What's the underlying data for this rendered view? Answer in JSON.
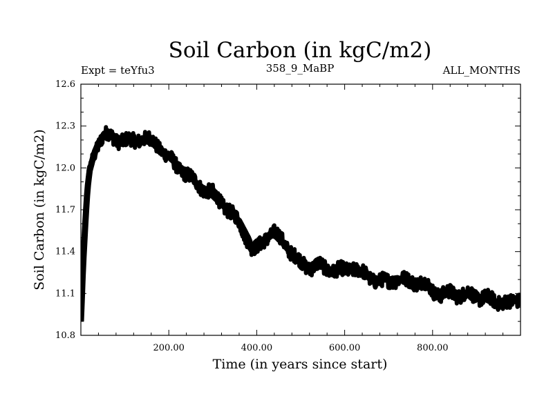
{
  "chart_data": {
    "type": "line",
    "title": "Soil Carbon (in kgC/m2)",
    "subtitle_left": "Expt = teYfu3",
    "subtitle_center": "358_9_MaBP",
    "subtitle_right": "ALL_MONTHS",
    "xlabel": "Time (in years since start)",
    "ylabel": "Soil Carbon (in kgC/m2)",
    "xlim": [
      0,
      1000
    ],
    "ylim": [
      10.8,
      12.6
    ],
    "x_ticks": [
      200,
      400,
      600,
      800
    ],
    "x_tick_labels": [
      "200.00",
      "400.00",
      "600.00",
      "800.00"
    ],
    "y_ticks": [
      10.8,
      11.1,
      11.4,
      11.7,
      12.0,
      12.3,
      12.6
    ],
    "y_tick_labels": [
      "10.8",
      "11.1",
      "11.4",
      "11.7",
      "12.0",
      "12.3",
      "12.6"
    ],
    "grid": false,
    "series": [
      {
        "name": "Soil Carbon",
        "color": "#000000",
        "noise_band": 0.05,
        "x": [
          0,
          5,
          10,
          15,
          20,
          30,
          40,
          50,
          60,
          70,
          80,
          100,
          120,
          140,
          160,
          180,
          200,
          220,
          240,
          260,
          280,
          300,
          320,
          340,
          360,
          380,
          390,
          400,
          420,
          440,
          460,
          480,
          500,
          520,
          540,
          560,
          580,
          600,
          620,
          640,
          660,
          680,
          700,
          720,
          740,
          760,
          780,
          800,
          820,
          840,
          860,
          880,
          900,
          920,
          940,
          960,
          980,
          1000
        ],
        "values": [
          10.9,
          11.3,
          11.6,
          11.85,
          11.98,
          12.1,
          12.18,
          12.23,
          12.25,
          12.24,
          12.22,
          12.2,
          12.19,
          12.2,
          12.18,
          12.14,
          12.08,
          12.02,
          11.97,
          11.9,
          11.84,
          11.8,
          11.74,
          11.68,
          11.62,
          11.5,
          11.42,
          11.43,
          11.5,
          11.52,
          11.46,
          11.38,
          11.32,
          11.3,
          11.32,
          11.28,
          11.26,
          11.25,
          11.27,
          11.24,
          11.22,
          11.2,
          11.2,
          11.21,
          11.18,
          11.17,
          11.16,
          11.12,
          11.1,
          11.12,
          11.1,
          11.1,
          11.06,
          11.06,
          11.03,
          11.05,
          11.04,
          11.08
        ]
      }
    ]
  }
}
